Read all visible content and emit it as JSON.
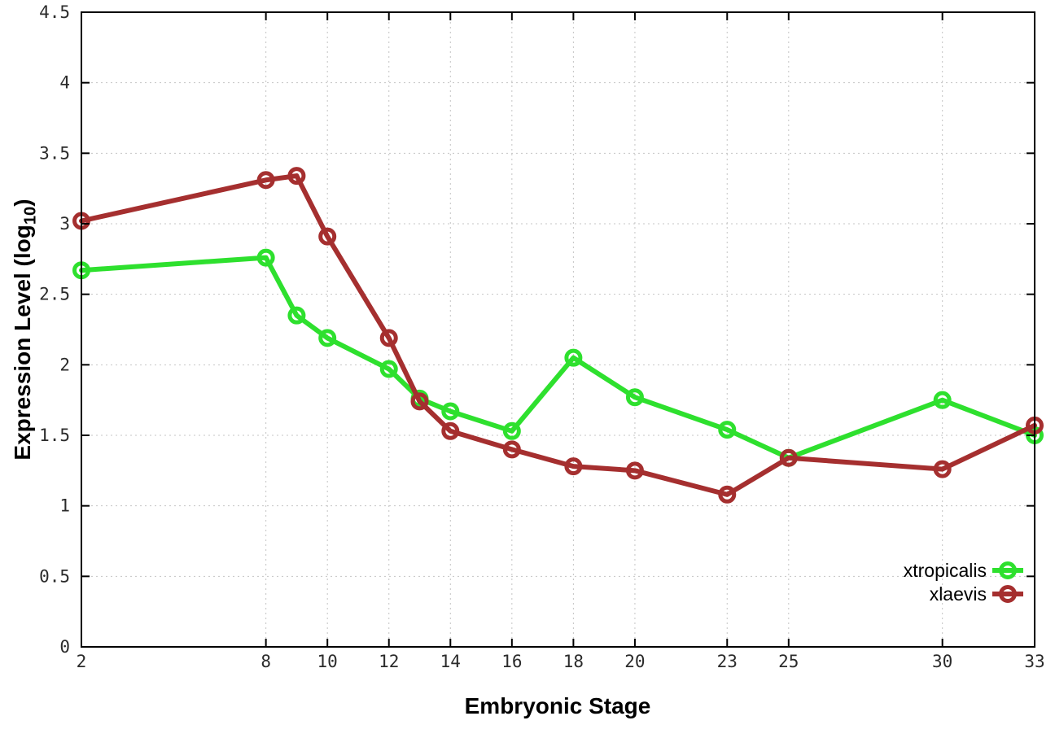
{
  "chart_data": {
    "type": "line",
    "title": "",
    "xlabel": "Embryonic Stage",
    "ylabel": "Expression Level (log10)",
    "ylabel_parts": {
      "prefix": "Expression Level (log",
      "sub": "10",
      "suffix": ")"
    },
    "x": [
      2,
      8,
      9,
      10,
      12,
      13,
      14,
      16,
      18,
      20,
      23,
      25,
      30,
      33
    ],
    "xticks": [
      2,
      8,
      10,
      12,
      14,
      16,
      18,
      20,
      23,
      25,
      30,
      33
    ],
    "yticks": [
      0,
      0.5,
      1,
      1.5,
      2,
      2.5,
      3,
      3.5,
      4,
      4.5
    ],
    "xlim": [
      2,
      33
    ],
    "ylim": [
      0,
      4.5
    ],
    "grid": true,
    "legend_position": "bottom-right",
    "marker": "open-circle",
    "series": [
      {
        "name": "xtropicalis",
        "color": "#2ee02e",
        "values": [
          2.67,
          2.76,
          2.35,
          2.19,
          1.97,
          1.76,
          1.67,
          1.53,
          2.05,
          1.77,
          1.54,
          1.34,
          1.75,
          1.5
        ]
      },
      {
        "name": "xlaevis",
        "color": "#a52f2f",
        "values": [
          3.02,
          3.31,
          3.34,
          2.91,
          2.19,
          1.74,
          1.53,
          1.4,
          1.28,
          1.25,
          1.08,
          1.34,
          1.26,
          1.57
        ]
      }
    ]
  },
  "colors": {
    "background": "#ffffff",
    "axis": "#000000",
    "grid": "#c4c4c4",
    "tick_label": "#2b2b2b",
    "legend_text": "#000000"
  }
}
